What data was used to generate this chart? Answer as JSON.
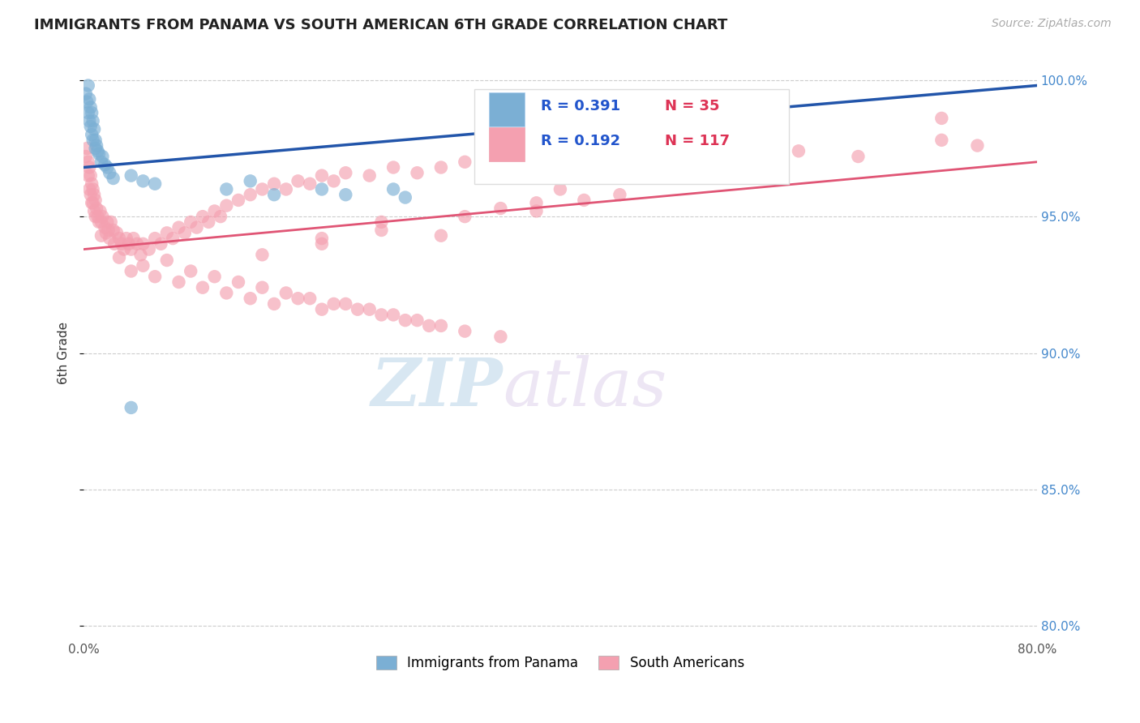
{
  "title": "IMMIGRANTS FROM PANAMA VS SOUTH AMERICAN 6TH GRADE CORRELATION CHART",
  "source_text": "Source: ZipAtlas.com",
  "ylabel": "6th Grade",
  "xlim": [
    0.0,
    0.8
  ],
  "ylim": [
    0.795,
    1.005
  ],
  "xticks": [
    0.0,
    0.1,
    0.2,
    0.3,
    0.4,
    0.5,
    0.6,
    0.7,
    0.8
  ],
  "xticklabels": [
    "0.0%",
    "",
    "",
    "",
    "",
    "",
    "",
    "",
    "80.0%"
  ],
  "yticks": [
    0.8,
    0.85,
    0.9,
    0.95,
    1.0
  ],
  "yticklabels": [
    "80.0%",
    "85.0%",
    "90.0%",
    "95.0%",
    "100.0%"
  ],
  "legend1_label": "Immigrants from Panama",
  "legend2_label": "South Americans",
  "r1": 0.391,
  "n1": 35,
  "r2": 0.192,
  "n2": 117,
  "panama_color": "#7bafd4",
  "south_color": "#f4a0b0",
  "panama_line_color": "#2255aa",
  "south_line_color": "#e05575",
  "watermark_zip": "ZIP",
  "watermark_atlas": "atlas",
  "panama_x": [
    0.002,
    0.003,
    0.004,
    0.004,
    0.005,
    0.005,
    0.006,
    0.006,
    0.007,
    0.007,
    0.008,
    0.008,
    0.009,
    0.01,
    0.01,
    0.011,
    0.012,
    0.013,
    0.015,
    0.016,
    0.018,
    0.02,
    0.022,
    0.025,
    0.04,
    0.05,
    0.06,
    0.12,
    0.14,
    0.16,
    0.2,
    0.22,
    0.26,
    0.27,
    0.04
  ],
  "panama_y": [
    0.995,
    0.992,
    0.998,
    0.988,
    0.993,
    0.985,
    0.99,
    0.983,
    0.988,
    0.98,
    0.985,
    0.978,
    0.982,
    0.978,
    0.975,
    0.976,
    0.974,
    0.973,
    0.97,
    0.972,
    0.969,
    0.968,
    0.966,
    0.964,
    0.965,
    0.963,
    0.962,
    0.96,
    0.963,
    0.958,
    0.96,
    0.958,
    0.96,
    0.957,
    0.88
  ],
  "south_x": [
    0.002,
    0.003,
    0.004,
    0.004,
    0.005,
    0.005,
    0.006,
    0.006,
    0.007,
    0.007,
    0.008,
    0.008,
    0.009,
    0.009,
    0.01,
    0.01,
    0.011,
    0.012,
    0.013,
    0.014,
    0.015,
    0.015,
    0.016,
    0.018,
    0.019,
    0.02,
    0.021,
    0.022,
    0.023,
    0.025,
    0.026,
    0.028,
    0.03,
    0.032,
    0.034,
    0.036,
    0.038,
    0.04,
    0.042,
    0.045,
    0.048,
    0.05,
    0.055,
    0.06,
    0.065,
    0.07,
    0.075,
    0.08,
    0.085,
    0.09,
    0.095,
    0.1,
    0.105,
    0.11,
    0.115,
    0.12,
    0.13,
    0.14,
    0.15,
    0.16,
    0.17,
    0.18,
    0.19,
    0.2,
    0.21,
    0.22,
    0.24,
    0.26,
    0.28,
    0.3,
    0.32,
    0.35,
    0.38,
    0.4,
    0.5,
    0.72,
    0.04,
    0.06,
    0.08,
    0.1,
    0.12,
    0.14,
    0.16,
    0.18,
    0.2,
    0.22,
    0.24,
    0.26,
    0.28,
    0.3,
    0.03,
    0.05,
    0.07,
    0.09,
    0.11,
    0.13,
    0.15,
    0.17,
    0.19,
    0.21,
    0.23,
    0.25,
    0.27,
    0.29,
    0.32,
    0.35,
    0.25,
    0.3,
    0.2,
    0.15,
    0.32,
    0.35,
    0.38,
    0.25,
    0.2,
    0.4,
    0.45,
    0.42,
    0.38,
    0.6,
    0.65,
    0.72,
    0.75
  ],
  "south_y": [
    0.972,
    0.975,
    0.97,
    0.965,
    0.968,
    0.96,
    0.965,
    0.958,
    0.962,
    0.955,
    0.96,
    0.955,
    0.958,
    0.952,
    0.956,
    0.95,
    0.953,
    0.95,
    0.948,
    0.952,
    0.948,
    0.943,
    0.95,
    0.946,
    0.944,
    0.948,
    0.945,
    0.942,
    0.948,
    0.945,
    0.94,
    0.944,
    0.942,
    0.94,
    0.938,
    0.942,
    0.94,
    0.938,
    0.942,
    0.94,
    0.936,
    0.94,
    0.938,
    0.942,
    0.94,
    0.944,
    0.942,
    0.946,
    0.944,
    0.948,
    0.946,
    0.95,
    0.948,
    0.952,
    0.95,
    0.954,
    0.956,
    0.958,
    0.96,
    0.962,
    0.96,
    0.963,
    0.962,
    0.965,
    0.963,
    0.966,
    0.965,
    0.968,
    0.966,
    0.968,
    0.97,
    0.968,
    0.972,
    0.97,
    0.972,
    0.986,
    0.93,
    0.928,
    0.926,
    0.924,
    0.922,
    0.92,
    0.918,
    0.92,
    0.916,
    0.918,
    0.916,
    0.914,
    0.912,
    0.91,
    0.935,
    0.932,
    0.934,
    0.93,
    0.928,
    0.926,
    0.924,
    0.922,
    0.92,
    0.918,
    0.916,
    0.914,
    0.912,
    0.91,
    0.908,
    0.906,
    0.945,
    0.943,
    0.94,
    0.936,
    0.95,
    0.953,
    0.955,
    0.948,
    0.942,
    0.96,
    0.958,
    0.956,
    0.952,
    0.974,
    0.972,
    0.978,
    0.976
  ],
  "panama_trend_x": [
    0.0,
    0.8
  ],
  "panama_trend_y": [
    0.968,
    0.998
  ],
  "south_trend_x": [
    0.0,
    0.8
  ],
  "south_trend_y": [
    0.938,
    0.97
  ]
}
